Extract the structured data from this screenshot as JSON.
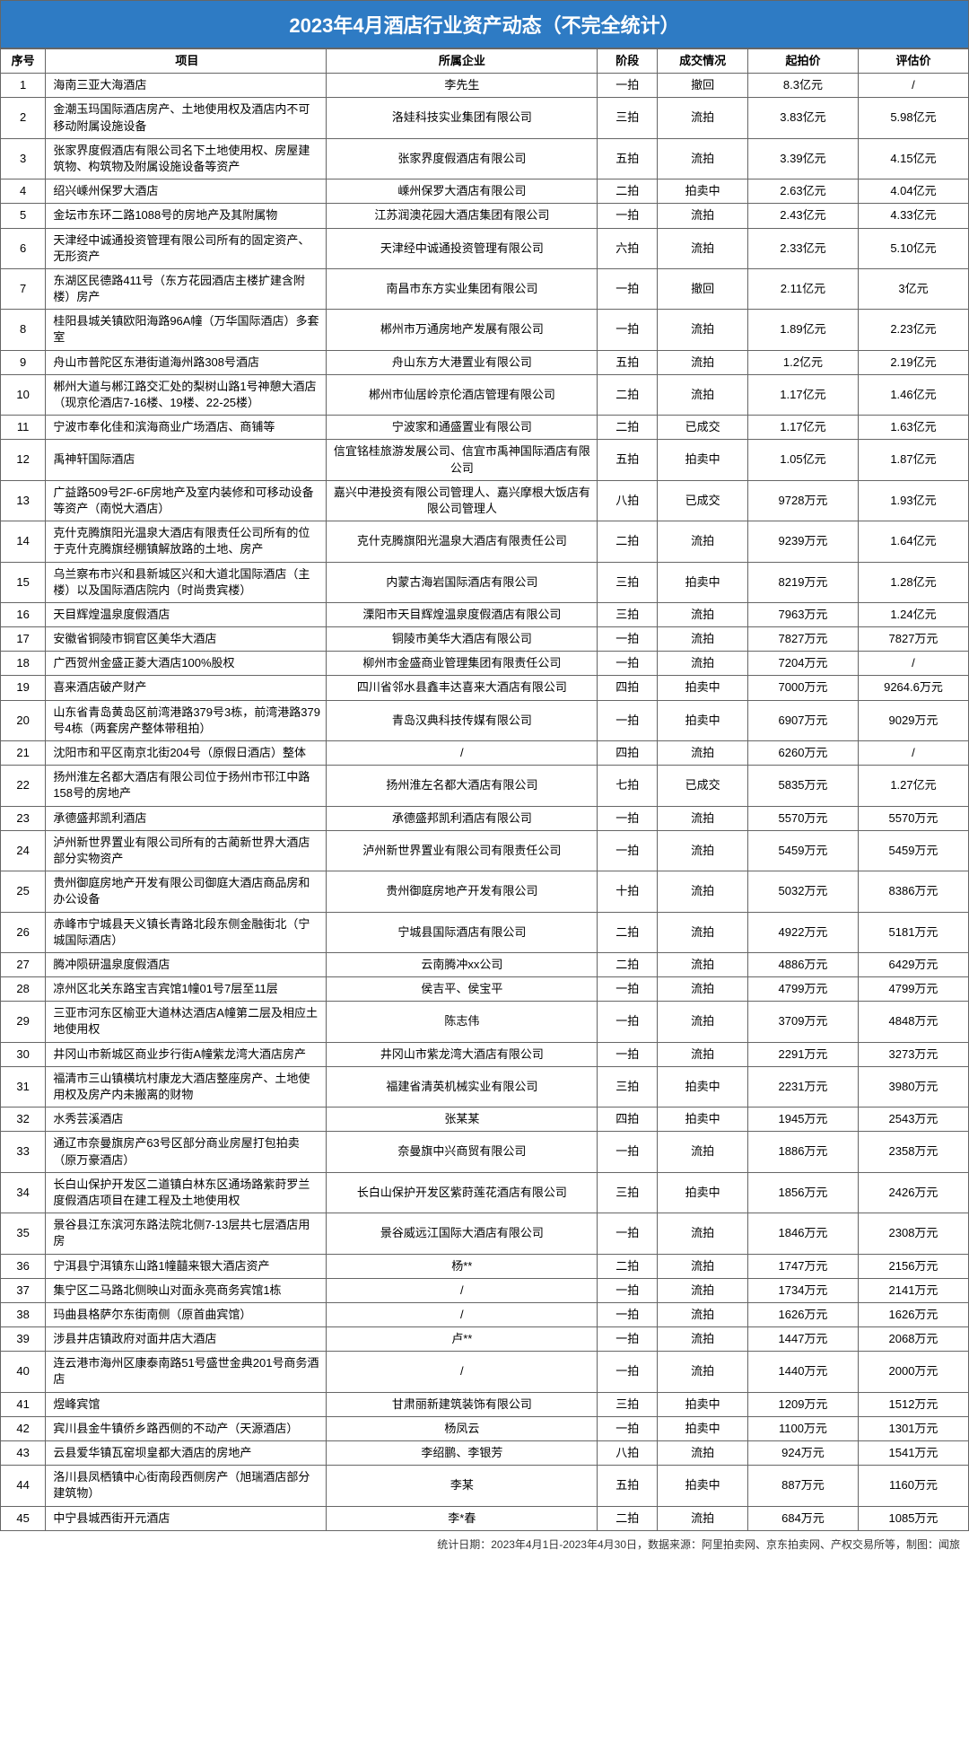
{
  "title": "2023年4月酒店行业资产动态（不完全统计）",
  "headers": {
    "seq": "序号",
    "project": "项目",
    "company": "所属企业",
    "stage": "阶段",
    "status": "成交情况",
    "startPrice": "起拍价",
    "evalPrice": "评估价"
  },
  "footer": "统计日期：2023年4月1日-2023年4月30日，数据来源：阿里拍卖网、京东拍卖网、产权交易所等，制图：闻旅",
  "rows": [
    {
      "seq": "1",
      "project": "海南三亚大海酒店",
      "company": "李先生",
      "stage": "一拍",
      "status": "撤回",
      "start": "8.3亿元",
      "eval": "/"
    },
    {
      "seq": "2",
      "project": "金潮玉玛国际酒店房产、土地使用权及酒店内不可移动附属设施设备",
      "company": "洛娃科技实业集团有限公司",
      "stage": "三拍",
      "status": "流拍",
      "start": "3.83亿元",
      "eval": "5.98亿元"
    },
    {
      "seq": "3",
      "project": "张家界度假酒店有限公司名下土地使用权、房屋建筑物、构筑物及附属设施设备等资产",
      "company": "张家界度假酒店有限公司",
      "stage": "五拍",
      "status": "流拍",
      "start": "3.39亿元",
      "eval": "4.15亿元"
    },
    {
      "seq": "4",
      "project": "绍兴嵊州保罗大酒店",
      "company": "嵊州保罗大酒店有限公司",
      "stage": "二拍",
      "status": "拍卖中",
      "start": "2.63亿元",
      "eval": "4.04亿元"
    },
    {
      "seq": "5",
      "project": "金坛市东环二路1088号的房地产及其附属物",
      "company": "江苏润澳花园大酒店集团有限公司",
      "stage": "一拍",
      "status": "流拍",
      "start": "2.43亿元",
      "eval": "4.33亿元"
    },
    {
      "seq": "6",
      "project": "天津经中诚通投资管理有限公司所有的固定资产、无形资产",
      "company": "天津经中诚通投资管理有限公司",
      "stage": "六拍",
      "status": "流拍",
      "start": "2.33亿元",
      "eval": "5.10亿元"
    },
    {
      "seq": "7",
      "project": "东湖区民德路411号（东方花园酒店主楼扩建含附楼）房产",
      "company": "南昌市东方实业集团有限公司",
      "stage": "一拍",
      "status": "撤回",
      "start": "2.11亿元",
      "eval": "3亿元"
    },
    {
      "seq": "8",
      "project": "桂阳县城关镇欧阳海路96A幢（万华国际酒店）多套室",
      "company": "郴州市万通房地产发展有限公司",
      "stage": "一拍",
      "status": "流拍",
      "start": "1.89亿元",
      "eval": "2.23亿元"
    },
    {
      "seq": "9",
      "project": "舟山市普陀区东港街道海州路308号酒店",
      "company": "舟山东方大港置业有限公司",
      "stage": "五拍",
      "status": "流拍",
      "start": "1.2亿元",
      "eval": "2.19亿元"
    },
    {
      "seq": "10",
      "project": "郴州大道与郴江路交汇处的梨树山路1号神憩大酒店（现京伦酒店7-16楼、19楼、22-25楼）",
      "company": "郴州市仙居岭京伦酒店管理有限公司",
      "stage": "二拍",
      "status": "流拍",
      "start": "1.17亿元",
      "eval": "1.46亿元"
    },
    {
      "seq": "11",
      "project": "宁波市奉化佳和滨海商业广场酒店、商铺等",
      "company": "宁波家和通盛置业有限公司",
      "stage": "二拍",
      "status": "已成交",
      "start": "1.17亿元",
      "eval": "1.63亿元"
    },
    {
      "seq": "12",
      "project": "禹神轩国际酒店",
      "company": "信宜铭桂旅游发展公司、信宜市禹神国际酒店有限公司",
      "stage": "五拍",
      "status": "拍卖中",
      "start": "1.05亿元",
      "eval": "1.87亿元"
    },
    {
      "seq": "13",
      "project": "广益路509号2F-6F房地产及室内装修和可移动设备等资产（南悦大酒店）",
      "company": "嘉兴中港投资有限公司管理人、嘉兴摩根大饭店有限公司管理人",
      "stage": "八拍",
      "status": "已成交",
      "start": "9728万元",
      "eval": "1.93亿元"
    },
    {
      "seq": "14",
      "project": "克什克腾旗阳光温泉大酒店有限责任公司所有的位于克什克腾旗经棚镇解放路的土地、房产",
      "company": "克什克腾旗阳光温泉大酒店有限责任公司",
      "stage": "二拍",
      "status": "流拍",
      "start": "9239万元",
      "eval": "1.64亿元"
    },
    {
      "seq": "15",
      "project": "乌兰察布市兴和县新城区兴和大道北国际酒店（主楼）以及国际酒店院内（时尚贵宾楼）",
      "company": "内蒙古海岩国际酒店有限公司",
      "stage": "三拍",
      "status": "拍卖中",
      "start": "8219万元",
      "eval": "1.28亿元"
    },
    {
      "seq": "16",
      "project": "天目辉煌温泉度假酒店",
      "company": "溧阳市天目辉煌温泉度假酒店有限公司",
      "stage": "三拍",
      "status": "流拍",
      "start": "7963万元",
      "eval": "1.24亿元"
    },
    {
      "seq": "17",
      "project": "安徽省铜陵市铜官区美华大酒店",
      "company": "铜陵市美华大酒店有限公司",
      "stage": "一拍",
      "status": "流拍",
      "start": "7827万元",
      "eval": "7827万元"
    },
    {
      "seq": "18",
      "project": "广西贺州金盛正菱大酒店100%股权",
      "company": "柳州市金盛商业管理集团有限责任公司",
      "stage": "一拍",
      "status": "流拍",
      "start": "7204万元",
      "eval": "/"
    },
    {
      "seq": "19",
      "project": "喜来酒店破产财产",
      "company": "四川省邻水县鑫丰达喜来大酒店有限公司",
      "stage": "四拍",
      "status": "拍卖中",
      "start": "7000万元",
      "eval": "9264.6万元"
    },
    {
      "seq": "20",
      "project": "山东省青岛黄岛区前湾港路379号3栋，前湾港路379号4栋（两套房产整体带租拍）",
      "company": "青岛汉典科技传媒有限公司",
      "stage": "一拍",
      "status": "拍卖中",
      "start": "6907万元",
      "eval": "9029万元"
    },
    {
      "seq": "21",
      "project": "沈阳市和平区南京北街204号（原假日酒店）整体",
      "company": "/",
      "stage": "四拍",
      "status": "流拍",
      "start": "6260万元",
      "eval": "/"
    },
    {
      "seq": "22",
      "project": "扬州淮左名都大酒店有限公司位于扬州市邗江中路158号的房地产",
      "company": "扬州淮左名都大酒店有限公司",
      "stage": "七拍",
      "status": "已成交",
      "start": "5835万元",
      "eval": "1.27亿元"
    },
    {
      "seq": "23",
      "project": "承德盛邦凯利酒店",
      "company": "承德盛邦凯利酒店有限公司",
      "stage": "一拍",
      "status": "流拍",
      "start": "5570万元",
      "eval": "5570万元"
    },
    {
      "seq": "24",
      "project": "泸州新世界置业有限公司所有的古蔺新世界大酒店部分实物资产",
      "company": "泸州新世界置业有限公司有限责任公司",
      "stage": "一拍",
      "status": "流拍",
      "start": "5459万元",
      "eval": "5459万元"
    },
    {
      "seq": "25",
      "project": "贵州御庭房地产开发有限公司御庭大酒店商品房和办公设备",
      "company": "贵州御庭房地产开发有限公司",
      "stage": "十拍",
      "status": "流拍",
      "start": "5032万元",
      "eval": "8386万元"
    },
    {
      "seq": "26",
      "project": "赤峰市宁城县天义镇长青路北段东侧金融街北（宁城国际酒店）",
      "company": "宁城县国际酒店有限公司",
      "stage": "二拍",
      "status": "流拍",
      "start": "4922万元",
      "eval": "5181万元"
    },
    {
      "seq": "27",
      "project": "腾冲陨研温泉度假酒店",
      "company": "云南腾冲xx公司",
      "stage": "二拍",
      "status": "流拍",
      "start": "4886万元",
      "eval": "6429万元"
    },
    {
      "seq": "28",
      "project": "凉州区北关东路宝吉宾馆1幢01号7层至11层",
      "company": "侯吉平、侯宝平",
      "stage": "一拍",
      "status": "流拍",
      "start": "4799万元",
      "eval": "4799万元"
    },
    {
      "seq": "29",
      "project": "三亚市河东区榆亚大道林达酒店A幢第二层及相应土地使用权",
      "company": "陈志伟",
      "stage": "一拍",
      "status": "流拍",
      "start": "3709万元",
      "eval": "4848万元"
    },
    {
      "seq": "30",
      "project": "井冈山市新城区商业步行街A幢紫龙湾大酒店房产",
      "company": "井冈山市紫龙湾大酒店有限公司",
      "stage": "一拍",
      "status": "流拍",
      "start": "2291万元",
      "eval": "3273万元"
    },
    {
      "seq": "31",
      "project": "福清市三山镇横坑村康龙大酒店整座房产、土地使用权及房产内未搬离的财物",
      "company": "福建省清英机械实业有限公司",
      "stage": "三拍",
      "status": "拍卖中",
      "start": "2231万元",
      "eval": "3980万元"
    },
    {
      "seq": "32",
      "project": "水秀芸溪酒店",
      "company": "张某某",
      "stage": "四拍",
      "status": "拍卖中",
      "start": "1945万元",
      "eval": "2543万元"
    },
    {
      "seq": "33",
      "project": "通辽市奈曼旗房产63号区部分商业房屋打包拍卖（原万豪酒店）",
      "company": "奈曼旗中兴商贸有限公司",
      "stage": "一拍",
      "status": "流拍",
      "start": "1886万元",
      "eval": "2358万元"
    },
    {
      "seq": "34",
      "project": "长白山保护开发区二道镇白林东区通场路紫莳罗兰度假酒店项目在建工程及土地使用权",
      "company": "长白山保护开发区紫莳莲花酒店有限公司",
      "stage": "三拍",
      "status": "拍卖中",
      "start": "1856万元",
      "eval": "2426万元"
    },
    {
      "seq": "35",
      "project": "景谷县江东滨河东路法院北侧7-13层共七层酒店用房",
      "company": "景谷威远江国际大酒店有限公司",
      "stage": "一拍",
      "status": "流拍",
      "start": "1846万元",
      "eval": "2308万元"
    },
    {
      "seq": "36",
      "project": "宁洱县宁洱镇东山路1幢囍来银大酒店资产",
      "company": "杨**",
      "stage": "二拍",
      "status": "流拍",
      "start": "1747万元",
      "eval": "2156万元"
    },
    {
      "seq": "37",
      "project": "集宁区二马路北侧映山对面永亮商务宾馆1栋",
      "company": "/",
      "stage": "一拍",
      "status": "流拍",
      "start": "1734万元",
      "eval": "2141万元"
    },
    {
      "seq": "38",
      "project": "玛曲县格萨尔东街南侧（原首曲宾馆）",
      "company": "/",
      "stage": "一拍",
      "status": "流拍",
      "start": "1626万元",
      "eval": "1626万元"
    },
    {
      "seq": "39",
      "project": "涉县井店镇政府对面井店大酒店",
      "company": "卢**",
      "stage": "一拍",
      "status": "流拍",
      "start": "1447万元",
      "eval": "2068万元"
    },
    {
      "seq": "40",
      "project": "连云港市海州区康泰南路51号盛世金典201号商务酒店",
      "company": "/",
      "stage": "一拍",
      "status": "流拍",
      "start": "1440万元",
      "eval": "2000万元"
    },
    {
      "seq": "41",
      "project": "煜峰宾馆",
      "company": "甘肃丽新建筑装饰有限公司",
      "stage": "三拍",
      "status": "拍卖中",
      "start": "1209万元",
      "eval": "1512万元"
    },
    {
      "seq": "42",
      "project": "宾川县金牛镇侨乡路西侧的不动产（天源酒店）",
      "company": "杨凤云",
      "stage": "一拍",
      "status": "拍卖中",
      "start": "1100万元",
      "eval": "1301万元"
    },
    {
      "seq": "43",
      "project": "云县爱华镇瓦窑坝皇都大酒店的房地产",
      "company": "李绍鹏、李银芳",
      "stage": "八拍",
      "status": "流拍",
      "start": "924万元",
      "eval": "1541万元"
    },
    {
      "seq": "44",
      "project": "洛川县凤栖镇中心街南段西侧房产（旭瑞酒店部分建筑物）",
      "company": "李某",
      "stage": "五拍",
      "status": "拍卖中",
      "start": "887万元",
      "eval": "1160万元"
    },
    {
      "seq": "45",
      "project": "中宁县城西街开元酒店",
      "company": "李*春",
      "stage": "二拍",
      "status": "流拍",
      "start": "684万元",
      "eval": "1085万元"
    }
  ]
}
